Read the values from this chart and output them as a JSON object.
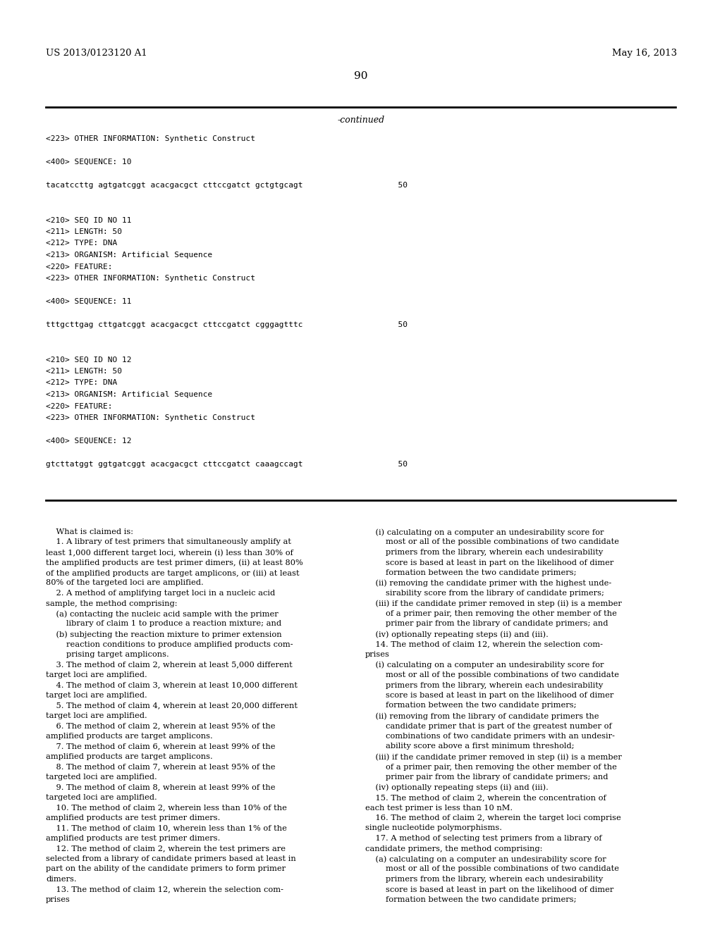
{
  "bg_color": "#ffffff",
  "header_left": "US 2013/0123120 A1",
  "header_right": "May 16, 2013",
  "page_number": "90",
  "continued_label": "-continued",
  "sequence_section": [
    "<223> OTHER INFORMATION: Synthetic Construct",
    "",
    "<400> SEQUENCE: 10",
    "",
    "tacatccttg agtgatcggt acacgacgct cttccgatct gctgtgcagt                    50",
    "",
    "",
    "<210> SEQ ID NO 11",
    "<211> LENGTH: 50",
    "<212> TYPE: DNA",
    "<213> ORGANISM: Artificial Sequence",
    "<220> FEATURE:",
    "<223> OTHER INFORMATION: Synthetic Construct",
    "",
    "<400> SEQUENCE: 11",
    "",
    "tttgcttgag cttgatcggt acacgacgct cttccgatct cgggagtttc                    50",
    "",
    "",
    "<210> SEQ ID NO 12",
    "<211> LENGTH: 50",
    "<212> TYPE: DNA",
    "<213> ORGANISM: Artificial Sequence",
    "<220> FEATURE:",
    "<223> OTHER INFORMATION: Synthetic Construct",
    "",
    "<400> SEQUENCE: 12",
    "",
    "gtcttatggt ggtgatcggt acacgacgct cttccgatct caaagccagt                    50"
  ],
  "claims_left": [
    "    What is claimed is:",
    "    1. A library of test primers that simultaneously amplify at",
    "least 1,000 different target loci, wherein (i) less than 30% of",
    "the amplified products are test primer dimers, (ii) at least 80%",
    "of the amplified products are target amplicons, or (iii) at least",
    "80% of the targeted loci are amplified.",
    "    2. A method of amplifying target loci in a nucleic acid",
    "sample, the method comprising:",
    "    (a) contacting the nucleic acid sample with the primer",
    "        library of claim 1 to produce a reaction mixture; and",
    "    (b) subjecting the reaction mixture to primer extension",
    "        reaction conditions to produce amplified products com-",
    "        prising target amplicons.",
    "    3. The method of claim 2, wherein at least 5,000 different",
    "target loci are amplified.",
    "    4. The method of claim 3, wherein at least 10,000 different",
    "target loci are amplified.",
    "    5. The method of claim 4, wherein at least 20,000 different",
    "target loci are amplified.",
    "    6. The method of claim 2, wherein at least 95% of the",
    "amplified products are target amplicons.",
    "    7. The method of claim 6, wherein at least 99% of the",
    "amplified products are target amplicons.",
    "    8. The method of claim 7, wherein at least 95% of the",
    "targeted loci are amplified.",
    "    9. The method of claim 8, wherein at least 99% of the",
    "targeted loci are amplified.",
    "    10. The method of claim 2, wherein less than 10% of the",
    "amplified products are test primer dimers.",
    "    11. The method of claim 10, wherein less than 1% of the",
    "amplified products are test primer dimers.",
    "    12. The method of claim 2, wherein the test primers are",
    "selected from a library of candidate primers based at least in",
    "part on the ability of the candidate primers to form primer",
    "dimers.",
    "    13. The method of claim 12, wherein the selection com-",
    "prises"
  ],
  "claims_right": [
    "    (i) calculating on a computer an undesirability score for",
    "        most or all of the possible combinations of two candidate",
    "        primers from the library, wherein each undesirability",
    "        score is based at least in part on the likelihood of dimer",
    "        formation between the two candidate primers;",
    "    (ii) removing the candidate primer with the highest unde-",
    "        sirability score from the library of candidate primers;",
    "    (iii) if the candidate primer removed in step (ii) is a member",
    "        of a primer pair, then removing the other member of the",
    "        primer pair from the library of candidate primers; and",
    "    (iv) optionally repeating steps (ii) and (iii).",
    "    14. The method of claim 12, wherein the selection com-",
    "prises",
    "    (i) calculating on a computer an undesirability score for",
    "        most or all of the possible combinations of two candidate",
    "        primers from the library, wherein each undesirability",
    "        score is based at least in part on the likelihood of dimer",
    "        formation between the two candidate primers;",
    "    (ii) removing from the library of candidate primers the",
    "        candidate primer that is part of the greatest number of",
    "        combinations of two candidate primers with an undesir-",
    "        ability score above a first minimum threshold;",
    "    (iii) if the candidate primer removed in step (ii) is a member",
    "        of a primer pair, then removing the other member of the",
    "        primer pair from the library of candidate primers; and",
    "    (iv) optionally repeating steps (ii) and (iii).",
    "    15. The method of claim 2, wherein the concentration of",
    "each test primer is less than 10 nM.",
    "    16. The method of claim 2, wherein the target loci comprise",
    "single nucleotide polymorphisms.",
    "    17. A method of selecting test primers from a library of",
    "candidate primers, the method comprising:",
    "    (a) calculating on a computer an undesirability score for",
    "        most or all of the possible combinations of two candidate",
    "        primers from the library, wherein each undesirability",
    "        score is based at least in part on the likelihood of dimer",
    "        formation between the two candidate primers;"
  ]
}
